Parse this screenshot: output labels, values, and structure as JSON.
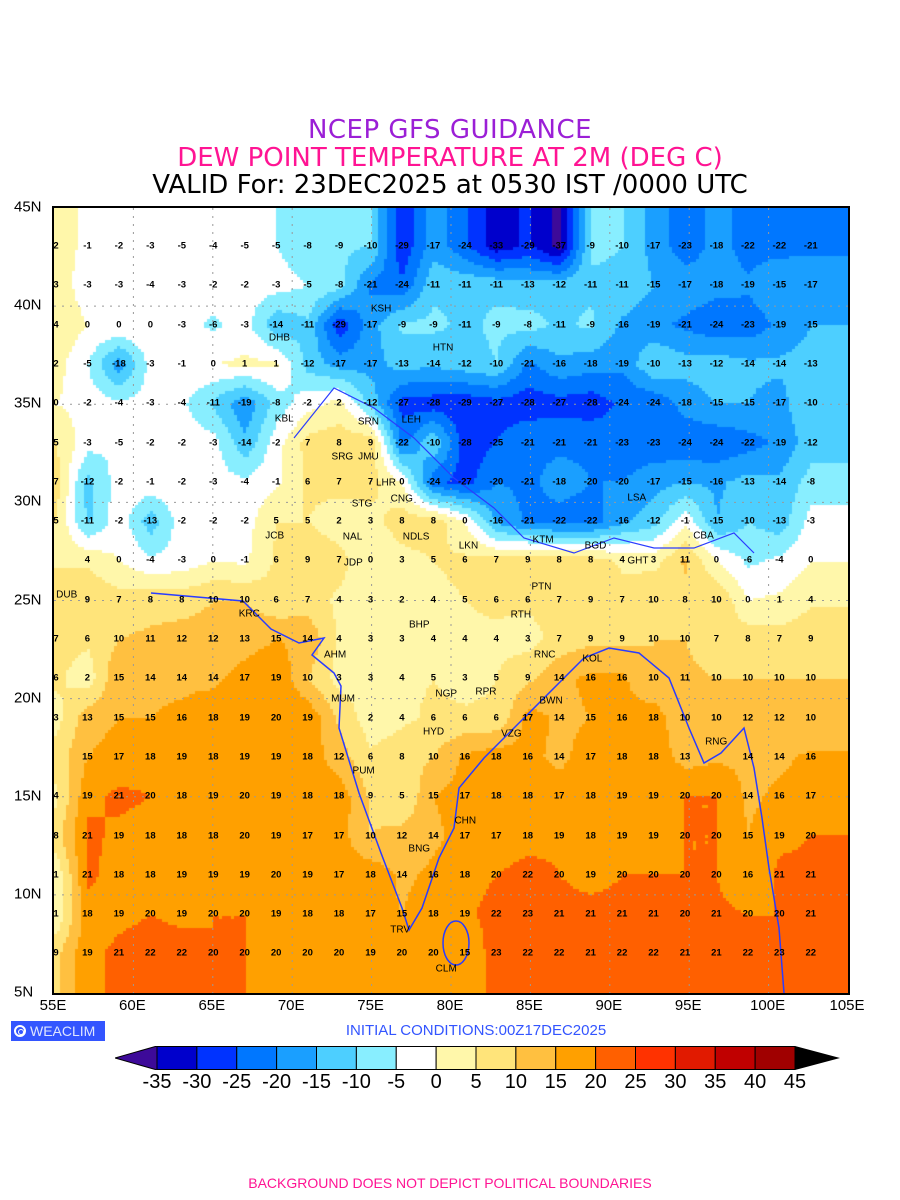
{
  "header": {
    "line1": "NCEP GFS GUIDANCE",
    "line2": "DEW POINT TEMPERATURE AT 2M (DEG C)",
    "line3": "VALID For: 23DEC2025 at 0530 IST /0000 UTC"
  },
  "colors": {
    "title1": "#9b1fd6",
    "title2": "#ff1493",
    "coast": "#2a3cff",
    "badge": "#3355ff"
  },
  "axes": {
    "lat_labels": [
      "45N",
      "40N",
      "35N",
      "30N",
      "25N",
      "20N",
      "15N",
      "10N",
      "5N"
    ],
    "lon_labels": [
      "55E",
      "60E",
      "65E",
      "70E",
      "75E",
      "80E",
      "85E",
      "90E",
      "95E",
      "100E",
      "105E"
    ]
  },
  "grid_values": [
    [
      2,
      -1,
      -2,
      -3,
      -5,
      -4,
      -5,
      -5,
      -8,
      -9,
      -10,
      -29,
      -17,
      -24,
      -33,
      -29,
      -37,
      -9,
      -10,
      -17,
      -23,
      -18,
      -22,
      -22,
      -21
    ],
    [
      3,
      -3,
      -3,
      -4,
      -3,
      -2,
      -2,
      -3,
      -5,
      -8,
      -21,
      -24,
      -11,
      -11,
      -11,
      -13,
      -12,
      -11,
      -11,
      -15,
      -17,
      -18,
      -19,
      -15,
      -17
    ],
    [
      4,
      0,
      0,
      0,
      -3,
      -6,
      -3,
      -14,
      -11,
      -29,
      -17,
      -9,
      -9,
      -11,
      -9,
      -8,
      -11,
      -9,
      -16,
      -19,
      -21,
      -24,
      -23,
      -19,
      -15
    ],
    [
      2,
      -5,
      -18,
      -3,
      -1,
      0,
      1,
      1,
      -12,
      -17,
      -17,
      -13,
      -14,
      -12,
      -10,
      -21,
      -16,
      -18,
      -19,
      -10,
      -13,
      -12,
      -14,
      -14,
      -13
    ],
    [
      0,
      -2,
      -4,
      -3,
      -4,
      -11,
      -19,
      -8,
      -2,
      2,
      -12,
      -27,
      -28,
      -29,
      -27,
      -28,
      -27,
      -28,
      -24,
      -24,
      -18,
      -15,
      -15,
      -17,
      -10
    ],
    [
      5,
      -3,
      -5,
      -2,
      -2,
      -3,
      -14,
      -2,
      7,
      8,
      9,
      -22,
      -10,
      -28,
      -25,
      -21,
      -21,
      -21,
      -23,
      -23,
      -24,
      -24,
      -22,
      -19,
      -12
    ],
    [
      7,
      -12,
      -2,
      -1,
      -2,
      -3,
      -4,
      -1,
      6,
      7,
      7,
      0,
      -24,
      -27,
      -20,
      -21,
      -18,
      -20,
      -20,
      -17,
      -15,
      -16,
      -13,
      -14,
      -8
    ],
    [
      5,
      -11,
      -2,
      -13,
      -2,
      -2,
      -2,
      5,
      5,
      2,
      3,
      8,
      8,
      0,
      -16,
      -21,
      -22,
      -22,
      -16,
      -12,
      -1,
      -15,
      -10,
      -13,
      -3
    ],
    [
      null,
      4,
      0,
      -4,
      -3,
      0,
      -1,
      6,
      9,
      7,
      0,
      3,
      5,
      6,
      7,
      9,
      8,
      8,
      4,
      3,
      11,
      0,
      -6,
      -4,
      0
    ],
    [
      null,
      9,
      7,
      8,
      8,
      10,
      10,
      6,
      7,
      4,
      3,
      2,
      4,
      5,
      6,
      6,
      7,
      9,
      7,
      10,
      8,
      10,
      0,
      1,
      4
    ],
    [
      7,
      6,
      10,
      11,
      12,
      12,
      13,
      15,
      14,
      4,
      3,
      3,
      4,
      4,
      4,
      3,
      7,
      9,
      9,
      10,
      10,
      7,
      8,
      7,
      9
    ],
    [
      6,
      2,
      15,
      14,
      14,
      14,
      17,
      19,
      10,
      3,
      3,
      4,
      5,
      3,
      5,
      9,
      14,
      16,
      16,
      10,
      11,
      10,
      10,
      10,
      10
    ],
    [
      3,
      13,
      15,
      15,
      16,
      18,
      19,
      20,
      19,
      null,
      2,
      4,
      6,
      6,
      6,
      17,
      14,
      15,
      16,
      18,
      10,
      10,
      12,
      12,
      10
    ],
    [
      null,
      15,
      17,
      18,
      19,
      18,
      19,
      19,
      18,
      12,
      6,
      8,
      10,
      16,
      18,
      16,
      14,
      17,
      18,
      18,
      13,
      null,
      14,
      14,
      16
    ],
    [
      4,
      19,
      21,
      20,
      18,
      19,
      20,
      19,
      18,
      18,
      9,
      5,
      15,
      17,
      18,
      18,
      17,
      18,
      19,
      19,
      20,
      20,
      14,
      16,
      17
    ],
    [
      8,
      21,
      19,
      18,
      18,
      18,
      20,
      19,
      17,
      17,
      10,
      12,
      14,
      17,
      17,
      18,
      19,
      18,
      19,
      19,
      20,
      20,
      15,
      19,
      20
    ],
    [
      1,
      21,
      18,
      18,
      19,
      19,
      19,
      20,
      19,
      17,
      18,
      14,
      16,
      18,
      20,
      22,
      20,
      19,
      20,
      20,
      20,
      20,
      16,
      21,
      21
    ],
    [
      1,
      18,
      19,
      20,
      19,
      20,
      20,
      19,
      18,
      18,
      17,
      15,
      18,
      19,
      22,
      23,
      21,
      21,
      21,
      21,
      20,
      21,
      20,
      20,
      21
    ],
    [
      9,
      19,
      21,
      22,
      22,
      20,
      20,
      20,
      20,
      20,
      19,
      20,
      20,
      15,
      23,
      22,
      22,
      21,
      22,
      22,
      21,
      21,
      22,
      23,
      22
    ]
  ],
  "stations": [
    {
      "code": "DUB",
      "lon": 55.8,
      "lat": 25.3
    },
    {
      "code": "DHB",
      "lon": 69.2,
      "lat": 38.6
    },
    {
      "code": "KBL",
      "lon": 69.5,
      "lat": 34.6
    },
    {
      "code": "KSH",
      "lon": 75.6,
      "lat": 39.5
    },
    {
      "code": "HTN",
      "lon": 79.5,
      "lat": 37.2
    },
    {
      "code": "SRN",
      "lon": 74.8,
      "lat": 34.1
    },
    {
      "code": "LEH",
      "lon": 77.5,
      "lat": 34.2
    },
    {
      "code": "JMU",
      "lon": 74.8,
      "lat": 32.8
    },
    {
      "code": "SRG",
      "lon": 73.6,
      "lat": 32.3
    },
    {
      "code": "LHR",
      "lon": 74.9,
      "lat": 31.8
    },
    {
      "code": "CNG",
      "lon": 76.9,
      "lat": 30.7
    },
    {
      "code": "STG",
      "lon": 74.4,
      "lat": 29.9
    },
    {
      "code": "NAL",
      "lon": 73.8,
      "lat": 28.6
    },
    {
      "code": "JCB",
      "lon": 68.9,
      "lat": 28.8
    },
    {
      "code": "NDLS",
      "lon": 77.8,
      "lat": 28.9
    },
    {
      "code": "JDP",
      "lon": 73.6,
      "lat": 26.9
    },
    {
      "code": "LKN",
      "lon": 81.1,
      "lat": 27.1
    },
    {
      "code": "KTM",
      "lon": 85.8,
      "lat": 28.1
    },
    {
      "code": "BGD",
      "lon": 89.1,
      "lat": 27.4
    },
    {
      "code": "GHT",
      "lon": 92.4,
      "lat": 27.0
    },
    {
      "code": "CBA",
      "lon": 95.9,
      "lat": 28.3
    },
    {
      "code": "LSA",
      "lon": 91.7,
      "lat": 30.2
    },
    {
      "code": "PTN",
      "lon": 85.7,
      "lat": 25.5
    },
    {
      "code": "RTH",
      "lon": 84.4,
      "lat": 24.6
    },
    {
      "code": "KRC",
      "lon": 67.3,
      "lat": 24.5
    },
    {
      "code": "AHM",
      "lon": 72.7,
      "lat": 22.9
    },
    {
      "code": "BHP",
      "lon": 78.0,
      "lat": 23.1
    },
    {
      "code": "RNC",
      "lon": 85.9,
      "lat": 22.9
    },
    {
      "code": "KOL",
      "lon": 88.9,
      "lat": 22.0
    },
    {
      "code": "NGP",
      "lon": 79.7,
      "lat": 20.9
    },
    {
      "code": "RPR",
      "lon": 82.2,
      "lat": 21.0
    },
    {
      "code": "BWN",
      "lon": 86.3,
      "lat": 19.9
    },
    {
      "code": "MUM",
      "lon": 73.2,
      "lat": 20.0
    },
    {
      "code": "HYD",
      "lon": 78.9,
      "lat": 18.3
    },
    {
      "code": "VZG",
      "lon": 83.8,
      "lat": 18.4
    },
    {
      "code": "RNG",
      "lon": 96.7,
      "lat": 17.8
    },
    {
      "code": "PUM",
      "lon": 74.5,
      "lat": 16.3
    },
    {
      "code": "CHN",
      "lon": 80.9,
      "lat": 13.4
    },
    {
      "code": "BNG",
      "lon": 78.0,
      "lat": 13.0
    },
    {
      "code": "TRV",
      "lon": 76.8,
      "lat": 8.4
    },
    {
      "code": "CLM",
      "lon": 79.7,
      "lat": 6.6
    }
  ],
  "footer": {
    "brand": "WEACLIM",
    "initial_conditions": "INITIAL CONDITIONS:00Z17DEC2025",
    "disclaimer": "BACKGROUND DOES NOT DEPICT POLITICAL BOUNDARIES"
  },
  "colorbar": {
    "labels": [
      "-35",
      "-30",
      "-25",
      "-20",
      "-15",
      "-10",
      "-5",
      "0",
      "5",
      "10",
      "15",
      "20",
      "25",
      "30",
      "35",
      "40",
      "45"
    ],
    "levels": [
      -35,
      -30,
      -25,
      -20,
      -15,
      -10,
      -5,
      0,
      5,
      10,
      15,
      20,
      25,
      30,
      35,
      40,
      45
    ],
    "colors": [
      "#3d0a99",
      "#0000cc",
      "#0033ff",
      "#0077ff",
      "#1a9fff",
      "#4dcfff",
      "#88eeff",
      "#ffffff",
      "#fff7aa",
      "#ffe47a",
      "#ffc040",
      "#ffa000",
      "#ff6000",
      "#ff3200",
      "#e11a00",
      "#c00000",
      "#a00000",
      "#000000"
    ]
  }
}
